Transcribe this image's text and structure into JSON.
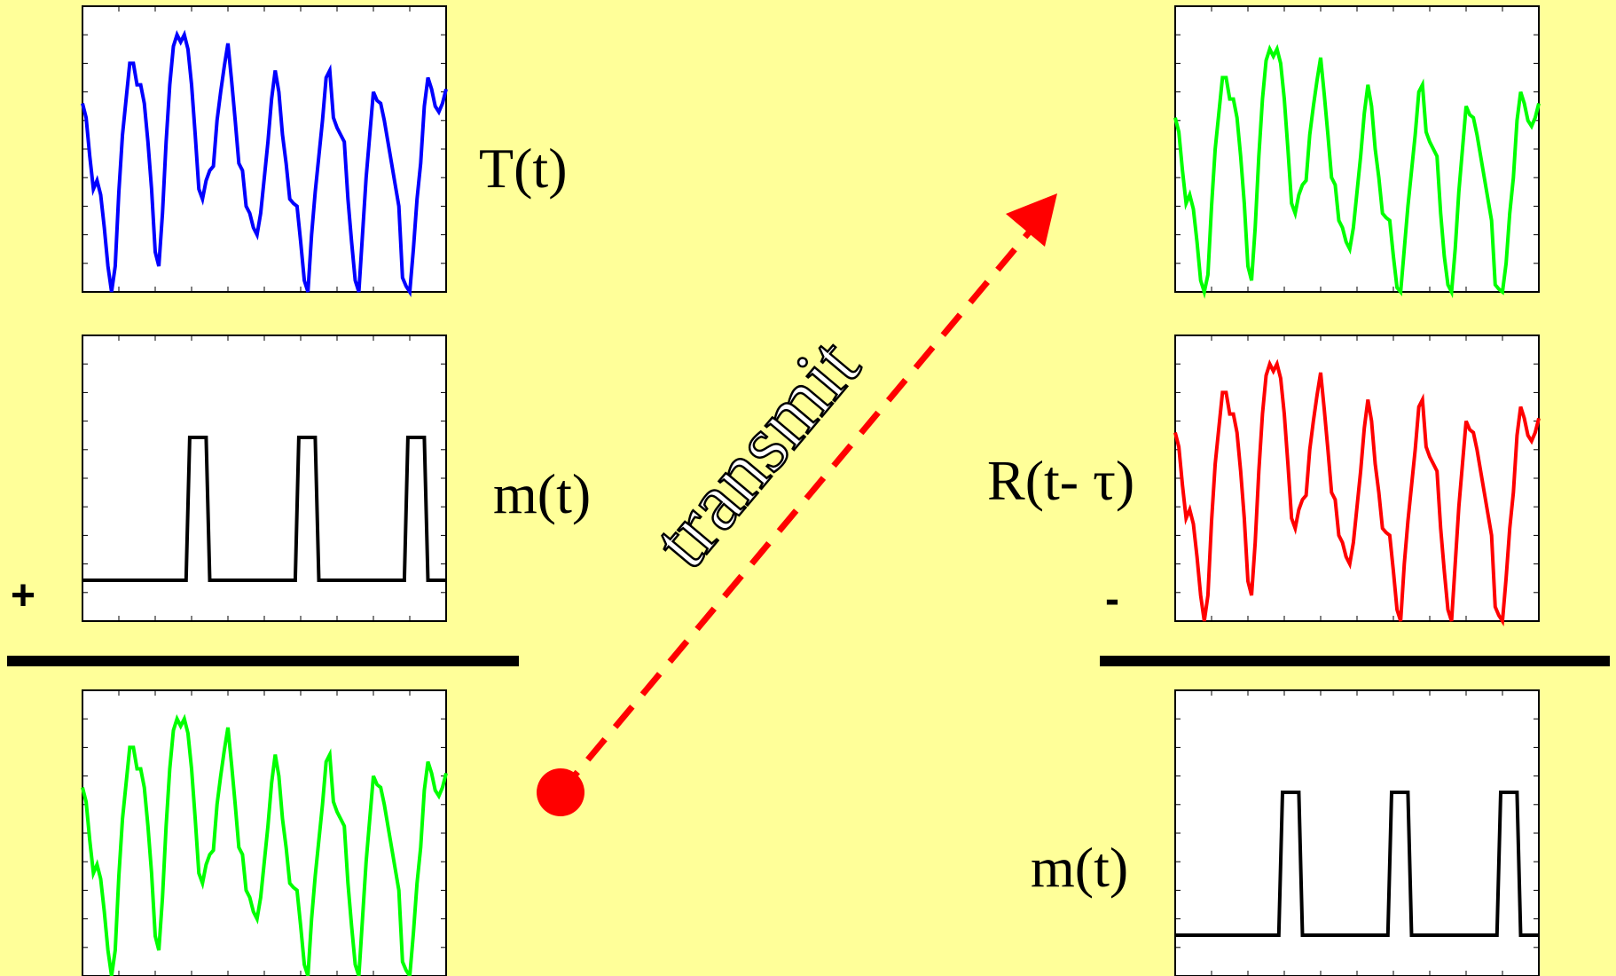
{
  "labels": {
    "transmitter_signal": "T(t)",
    "message_left": "m(t)",
    "receiver_signal": "R(t- τ)",
    "message_right": "m(t)",
    "plus_sign": "+",
    "minus_sign": "-",
    "transmit": "transmit"
  },
  "colors": {
    "background": "#ffff99",
    "chaotic_transmitter": "#0000ff",
    "chaotic_masked": "#00ff00",
    "chaotic_received": "#ff0000",
    "message": "#000000",
    "arrow": "#ff0000",
    "panel_bg": "#ffffff"
  },
  "chart_data": [
    {
      "id": "T",
      "type": "line",
      "color": "#0000ff",
      "ylim": [
        -1,
        1
      ],
      "x": [
        0,
        1,
        2,
        3,
        4,
        5,
        6,
        7,
        8,
        9,
        10,
        11,
        12,
        13,
        14,
        15,
        16,
        17,
        18,
        19,
        20,
        21,
        22,
        23,
        24,
        25,
        26,
        27,
        28,
        29,
        30,
        31,
        32,
        33,
        34,
        35,
        36,
        37,
        38,
        39,
        40,
        41,
        42,
        43,
        44,
        45,
        46,
        47,
        48,
        49,
        50,
        51,
        52,
        53,
        54,
        55,
        56,
        57,
        58,
        59,
        60,
        61,
        62,
        63,
        64,
        65,
        66,
        67,
        68,
        69,
        70,
        71,
        72,
        73,
        74,
        75,
        76,
        77,
        78,
        79,
        80,
        81,
        82,
        83,
        84,
        85,
        86,
        87,
        88,
        89,
        90,
        91,
        92,
        93,
        94,
        95,
        96,
        97,
        98,
        99,
        100
      ],
      "values": [
        0.32,
        0.22,
        -0.05,
        -0.28,
        -0.22,
        -0.32,
        -0.55,
        -0.82,
        -1.0,
        -0.82,
        -0.3,
        0.1,
        0.35,
        0.6,
        0.6,
        0.45,
        0.45,
        0.32,
        0.05,
        -0.28,
        -0.72,
        -0.82,
        -0.45,
        0.05,
        0.45,
        0.72,
        0.8,
        0.75,
        0.8,
        0.7,
        0.45,
        0.1,
        -0.28,
        -0.35,
        -0.22,
        -0.15,
        -0.12,
        0.2,
        0.4,
        0.58,
        0.74,
        0.48,
        0.2,
        -0.1,
        -0.15,
        -0.4,
        -0.45,
        -0.55,
        -0.6,
        -0.45,
        -0.2,
        0.05,
        0.35,
        0.55,
        0.4,
        0.1,
        -0.1,
        -0.35,
        -0.38,
        -0.4,
        -0.65,
        -0.92,
        -1.0,
        -0.6,
        -0.3,
        -0.05,
        0.2,
        0.5,
        0.55,
        0.22,
        0.15,
        0.1,
        0.05,
        -0.35,
        -0.65,
        -0.92,
        -1.0,
        -0.6,
        -0.2,
        0.1,
        0.4,
        0.34,
        0.32,
        0.2,
        0.05,
        -0.1,
        -0.25,
        -0.4,
        -0.9,
        -0.96,
        -1.0,
        -0.7,
        -0.35,
        -0.1,
        0.3,
        0.5,
        0.42,
        0.3,
        0.26,
        0.32,
        0.42
      ]
    },
    {
      "id": "m_left",
      "type": "line",
      "color": "#000000",
      "ylim": [
        -0.2,
        1.2
      ],
      "x": [
        0,
        28.5,
        29.5,
        34,
        35,
        58.5,
        59.5,
        64,
        65,
        88.5,
        89.5,
        94,
        95,
        100
      ],
      "values": [
        0,
        0,
        0.7,
        0.7,
        0,
        0,
        0.7,
        0.7,
        0,
        0,
        0.7,
        0.7,
        0,
        0
      ]
    },
    {
      "id": "S_left",
      "type": "line",
      "color": "#00ff00",
      "ylim": [
        -1,
        1
      ],
      "x": [
        0,
        1,
        2,
        3,
        4,
        5,
        6,
        7,
        8,
        9,
        10,
        11,
        12,
        13,
        14,
        15,
        16,
        17,
        18,
        19,
        20,
        21,
        22,
        23,
        24,
        25,
        26,
        27,
        28,
        29,
        30,
        31,
        32,
        33,
        34,
        35,
        36,
        37,
        38,
        39,
        40,
        41,
        42,
        43,
        44,
        45,
        46,
        47,
        48,
        49,
        50,
        51,
        52,
        53,
        54,
        55,
        56,
        57,
        58,
        59,
        60,
        61,
        62,
        63,
        64,
        65,
        66,
        67,
        68,
        69,
        70,
        71,
        72,
        73,
        74,
        75,
        76,
        77,
        78,
        79,
        80,
        81,
        82,
        83,
        84,
        85,
        86,
        87,
        88,
        89,
        90,
        91,
        92,
        93,
        94,
        95,
        96,
        97,
        98,
        99,
        100
      ],
      "values": [
        0.32,
        0.22,
        -0.05,
        -0.28,
        -0.22,
        -0.32,
        -0.55,
        -0.82,
        -1.0,
        -0.82,
        -0.3,
        0.1,
        0.35,
        0.6,
        0.6,
        0.45,
        0.45,
        0.32,
        0.05,
        -0.28,
        -0.72,
        -0.82,
        -0.45,
        0.05,
        0.45,
        0.72,
        0.8,
        0.75,
        0.8,
        0.7,
        0.45,
        0.1,
        -0.28,
        -0.35,
        -0.22,
        -0.15,
        -0.12,
        0.2,
        0.4,
        0.58,
        0.74,
        0.48,
        0.2,
        -0.1,
        -0.15,
        -0.4,
        -0.45,
        -0.55,
        -0.6,
        -0.45,
        -0.2,
        0.05,
        0.35,
        0.55,
        0.4,
        0.1,
        -0.1,
        -0.35,
        -0.38,
        -0.4,
        -0.65,
        -0.92,
        -1.0,
        -0.6,
        -0.3,
        -0.05,
        0.2,
        0.5,
        0.55,
        0.22,
        0.15,
        0.1,
        0.05,
        -0.35,
        -0.65,
        -0.92,
        -1.0,
        -0.6,
        -0.2,
        0.1,
        0.4,
        0.34,
        0.32,
        0.2,
        0.05,
        -0.1,
        -0.25,
        -0.4,
        -0.9,
        -0.96,
        -1.0,
        -0.7,
        -0.35,
        -0.1,
        0.3,
        0.5,
        0.42,
        0.3,
        0.26,
        0.32,
        0.42
      ]
    },
    {
      "id": "S_right",
      "type": "line",
      "color": "#00ff00",
      "ylim": [
        -1,
        1
      ],
      "x": [
        0,
        1,
        2,
        3,
        4,
        5,
        6,
        7,
        8,
        9,
        10,
        11,
        12,
        13,
        14,
        15,
        16,
        17,
        18,
        19,
        20,
        21,
        22,
        23,
        24,
        25,
        26,
        27,
        28,
        29,
        30,
        31,
        32,
        33,
        34,
        35,
        36,
        37,
        38,
        39,
        40,
        41,
        42,
        43,
        44,
        45,
        46,
        47,
        48,
        49,
        50,
        51,
        52,
        53,
        54,
        55,
        56,
        57,
        58,
        59,
        60,
        61,
        62,
        63,
        64,
        65,
        66,
        67,
        68,
        69,
        70,
        71,
        72,
        73,
        74,
        75,
        76,
        77,
        78,
        79,
        80,
        81,
        82,
        83,
        84,
        85,
        86,
        87,
        88,
        89,
        90,
        91,
        92,
        93,
        94,
        95,
        96,
        97,
        98,
        99,
        100
      ],
      "values": [
        0.22,
        0.12,
        -0.15,
        -0.38,
        -0.32,
        -0.42,
        -0.65,
        -0.92,
        -1.0,
        -0.88,
        -0.4,
        0.0,
        0.25,
        0.5,
        0.5,
        0.35,
        0.35,
        0.22,
        -0.05,
        -0.38,
        -0.82,
        -0.92,
        -0.55,
        -0.05,
        0.35,
        0.62,
        0.7,
        0.65,
        0.7,
        0.6,
        0.35,
        0.0,
        -0.38,
        -0.45,
        -0.32,
        -0.25,
        -0.22,
        0.1,
        0.3,
        0.48,
        0.64,
        0.38,
        0.1,
        -0.2,
        -0.25,
        -0.5,
        -0.55,
        -0.65,
        -0.7,
        -0.55,
        -0.3,
        -0.05,
        0.25,
        0.45,
        0.3,
        0.0,
        -0.2,
        -0.45,
        -0.48,
        -0.5,
        -0.75,
        -0.97,
        -1.0,
        -0.7,
        -0.4,
        -0.15,
        0.1,
        0.4,
        0.45,
        0.12,
        0.05,
        0.0,
        -0.05,
        -0.45,
        -0.75,
        -0.95,
        -1.0,
        -0.7,
        -0.3,
        0.0,
        0.3,
        0.24,
        0.22,
        0.1,
        -0.05,
        -0.2,
        -0.35,
        -0.5,
        -0.95,
        -0.98,
        -1.0,
        -0.8,
        -0.45,
        -0.2,
        0.2,
        0.4,
        0.32,
        0.2,
        0.16,
        0.22,
        0.32
      ]
    },
    {
      "id": "R",
      "type": "line",
      "color": "#ff0000",
      "ylim": [
        -1,
        1
      ],
      "x": [
        0,
        1,
        2,
        3,
        4,
        5,
        6,
        7,
        8,
        9,
        10,
        11,
        12,
        13,
        14,
        15,
        16,
        17,
        18,
        19,
        20,
        21,
        22,
        23,
        24,
        25,
        26,
        27,
        28,
        29,
        30,
        31,
        32,
        33,
        34,
        35,
        36,
        37,
        38,
        39,
        40,
        41,
        42,
        43,
        44,
        45,
        46,
        47,
        48,
        49,
        50,
        51,
        52,
        53,
        54,
        55,
        56,
        57,
        58,
        59,
        60,
        61,
        62,
        63,
        64,
        65,
        66,
        67,
        68,
        69,
        70,
        71,
        72,
        73,
        74,
        75,
        76,
        77,
        78,
        79,
        80,
        81,
        82,
        83,
        84,
        85,
        86,
        87,
        88,
        89,
        90,
        91,
        92,
        93,
        94,
        95,
        96,
        97,
        98,
        99,
        100
      ],
      "values": [
        0.32,
        0.22,
        -0.05,
        -0.28,
        -0.22,
        -0.32,
        -0.55,
        -0.82,
        -1.0,
        -0.82,
        -0.3,
        0.1,
        0.35,
        0.6,
        0.6,
        0.45,
        0.45,
        0.32,
        0.05,
        -0.28,
        -0.72,
        -0.82,
        -0.45,
        0.05,
        0.45,
        0.72,
        0.8,
        0.75,
        0.8,
        0.7,
        0.45,
        0.1,
        -0.28,
        -0.35,
        -0.22,
        -0.15,
        -0.12,
        0.2,
        0.4,
        0.58,
        0.74,
        0.48,
        0.2,
        -0.1,
        -0.15,
        -0.4,
        -0.45,
        -0.55,
        -0.6,
        -0.45,
        -0.2,
        0.05,
        0.35,
        0.55,
        0.4,
        0.1,
        -0.1,
        -0.35,
        -0.38,
        -0.4,
        -0.65,
        -0.92,
        -1.0,
        -0.6,
        -0.3,
        -0.05,
        0.2,
        0.5,
        0.55,
        0.22,
        0.15,
        0.1,
        0.05,
        -0.35,
        -0.65,
        -0.92,
        -1.0,
        -0.6,
        -0.2,
        0.1,
        0.4,
        0.34,
        0.32,
        0.2,
        0.05,
        -0.1,
        -0.25,
        -0.4,
        -0.9,
        -0.96,
        -1.0,
        -0.7,
        -0.35,
        -0.1,
        0.3,
        0.5,
        0.42,
        0.3,
        0.26,
        0.32,
        0.42
      ]
    },
    {
      "id": "m_right",
      "type": "line",
      "color": "#000000",
      "ylim": [
        -0.2,
        1.2
      ],
      "x": [
        0,
        28.5,
        29.5,
        34,
        35,
        58.5,
        59.5,
        64,
        65,
        88.5,
        89.5,
        94,
        95,
        100
      ],
      "values": [
        0,
        0,
        0.7,
        0.7,
        0,
        0,
        0.7,
        0.7,
        0,
        0,
        0.7,
        0.7,
        0,
        0
      ]
    }
  ]
}
